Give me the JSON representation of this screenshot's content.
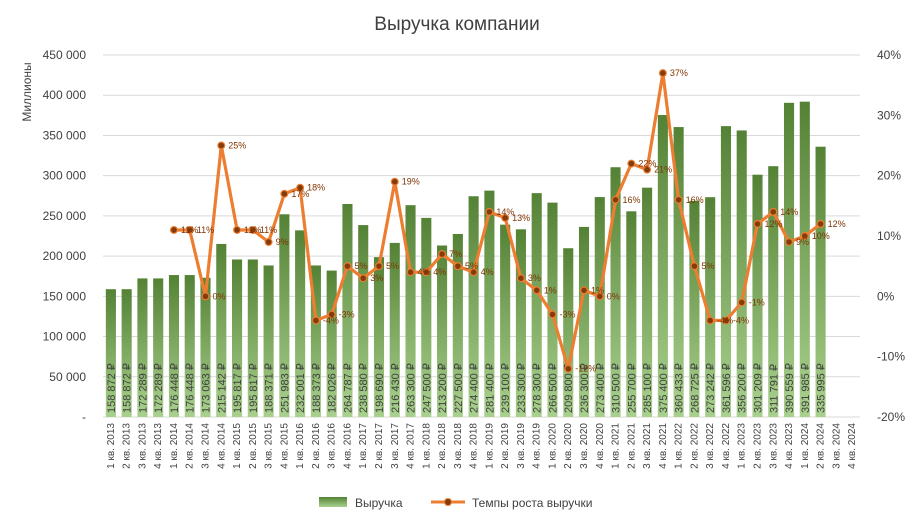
{
  "chart_data": {
    "type": "bar",
    "title": "Выручка компании",
    "ylabel": "Миллионы",
    "y2label": "",
    "ylim": [
      0,
      450000
    ],
    "y2lim": [
      -20,
      40
    ],
    "yticks": [
      "-",
      "50 000",
      "100 000",
      "150 000",
      "200 000",
      "250 000",
      "300 000",
      "350 000",
      "400 000",
      "450 000"
    ],
    "y2ticks": [
      "-20%",
      "-10%",
      "0%",
      "10%",
      "20%",
      "30%",
      "40%"
    ],
    "grid": true,
    "legend_position": "bottom",
    "categories": [
      "1 кв. 2013",
      "2 кв. 2013",
      "3 кв. 2013",
      "4 кв. 2013",
      "1 кв. 2014",
      "2 кв. 2014",
      "3 кв. 2014",
      "4 кв. 2014",
      "1 кв. 2015",
      "2 кв. 2015",
      "3 кв. 2015",
      "4 кв. 2015",
      "1 кв. 2016",
      "2 кв. 2016",
      "3 кв. 2016",
      "4 кв. 2016",
      "1 кв. 2017",
      "2 кв. 2017",
      "3 кв. 2017",
      "4 кв. 2017",
      "1 кв. 2018",
      "2 кв. 2018",
      "3 кв. 2018",
      "4 кв. 2018",
      "1 кв. 2019",
      "2 кв. 2019",
      "3 кв. 2019",
      "4 кв. 2019",
      "1 кв. 2020",
      "2 кв. 2020",
      "3 кв. 2020",
      "4 кв. 2020",
      "1 кв. 2021",
      "2 кв. 2021",
      "3 кв. 2021",
      "4 кв. 2021",
      "1 кв. 2022",
      "2 кв. 2022",
      "3 кв. 2022",
      "4 кв. 2022",
      "1 кв. 2023",
      "2 кв. 2023",
      "3 кв. 2023",
      "4 кв. 2023",
      "1 кв. 2024",
      "2 кв. 2024",
      "3 кв. 2024",
      "4 кв. 2024"
    ],
    "series": [
      {
        "name": "Выручка",
        "kind": "bar",
        "color": "#70ad47",
        "values": [
          158872,
          158872,
          172289,
          172289,
          176448,
          176448,
          173063,
          215142,
          195817,
          195817,
          188371,
          251983,
          232001,
          188373,
          182026,
          264787,
          238580,
          198690,
          216430,
          263300,
          247500,
          213200,
          227500,
          274400,
          281400,
          239100,
          233300,
          278300,
          266500,
          209800,
          236300,
          273400,
          310500,
          255700,
          285100,
          375400,
          360433,
          268725,
          273242,
          361596,
          356200,
          301209,
          311791,
          390559,
          391985,
          335995,
          null,
          null
        ],
        "labels": [
          "158 872 ₽",
          "158 872 ₽",
          "172 289 ₽",
          "172 289 ₽",
          "176 448 ₽",
          "176 448 ₽",
          "173 063 ₽",
          "215 142 ₽",
          "195 817 ₽",
          "195 817 ₽",
          "188 371 ₽",
          "251 983 ₽",
          "232 001 ₽",
          "188 373 ₽",
          "182 026 ₽",
          "264 787 ₽",
          "238 580 ₽",
          "198 690 ₽",
          "216 430 ₽",
          "263 300 ₽",
          "247 500 ₽",
          "213 200 ₽",
          "227 500 ₽",
          "274 400 ₽",
          "281 400 ₽",
          "239 100 ₽",
          "233 300 ₽",
          "278 300 ₽",
          "266 500 ₽",
          "209 800 ₽",
          "236 300 ₽",
          "273 400 ₽",
          "310 500 ₽",
          "255 700 ₽",
          "285 100 ₽",
          "375 400 ₽",
          "360 433 ₽",
          "268 725 ₽",
          "273 242 ₽",
          "361 596 ₽",
          "356 200 ₽",
          "301 209 ₽",
          "311 791 ₽",
          "390 559 ₽",
          "391 985 ₽",
          "335 995 ₽",
          "",
          ""
        ]
      },
      {
        "name": "Темпы роста выручки",
        "kind": "line",
        "axis": "secondary",
        "color": "#ed7d31",
        "marker_color": "#843c0c",
        "values": [
          null,
          null,
          null,
          null,
          11,
          11,
          0,
          25,
          11,
          11,
          9,
          17,
          18,
          -4,
          -3,
          5,
          3,
          5,
          19,
          4,
          4,
          7,
          5,
          4,
          14,
          13,
          3,
          1,
          -3,
          -12,
          1,
          0,
          16,
          22,
          21,
          37,
          16,
          5,
          -4,
          -4,
          -1,
          12,
          14,
          9,
          10,
          12,
          null,
          null
        ],
        "labels": [
          "",
          "",
          "",
          "",
          "11%",
          "11%",
          "0%",
          "25%",
          "11%",
          "11%",
          "9%",
          "17%",
          "18%",
          "-4%",
          "-3%",
          "5%",
          "3%",
          "5%",
          "19%",
          "4%",
          "4%",
          "7%",
          "5%",
          "4%",
          "14%",
          "13%",
          "3%",
          "1%",
          "-3%",
          "-12%",
          "1%",
          "0%",
          "16%",
          "22%",
          "21%",
          "37%",
          "16%",
          "5%",
          "-4%",
          "-4%",
          "-1%",
          "12%",
          "14%",
          "9%",
          "10%",
          "12%",
          "",
          ""
        ]
      }
    ]
  }
}
